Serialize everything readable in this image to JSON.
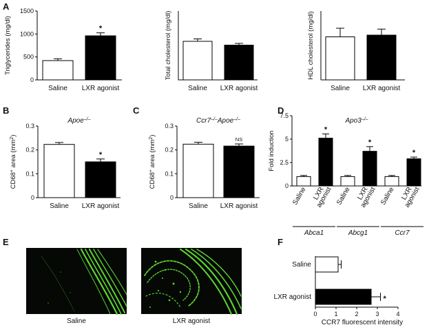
{
  "panel_labels": [
    "A",
    "B",
    "C",
    "D",
    "E",
    "F"
  ],
  "colors": {
    "saline_fill": "#ffffff",
    "lxr_fill": "#000000",
    "stroke": "#000000",
    "micro_background": "#050805",
    "micro_fluorescence": "#5cd62e"
  },
  "chart_data": [
    {
      "id": "A1",
      "panel": "A",
      "type": "bar",
      "categories": [
        "Saline",
        "LXR agonist"
      ],
      "values": [
        420,
        960
      ],
      "errors": [
        40,
        65
      ],
      "significance": [
        "",
        "*"
      ],
      "ylabel": "Triglycerides (mg/dl)",
      "yticks": [
        0,
        500,
        1000,
        1500
      ],
      "ylim": [
        0,
        1500
      ]
    },
    {
      "id": "A2",
      "panel": "A",
      "type": "bar",
      "categories": [
        "Saline",
        "LXR agonist"
      ],
      "values": [
        112,
        101
      ],
      "errors": [
        7,
        5
      ],
      "significance": [
        "",
        ""
      ],
      "ylabel": "Total cholesterol (mg/dl)",
      "yticks": [],
      "ylim": [
        0,
        200
      ]
    },
    {
      "id": "A3",
      "panel": "A",
      "type": "bar",
      "categories": [
        "Saline",
        "LXR agonist"
      ],
      "values": [
        25,
        26
      ],
      "errors": [
        5,
        3.5
      ],
      "significance": [
        "",
        ""
      ],
      "ylabel": "HDL cholesterol (mg/dl)",
      "yticks": [],
      "ylim": [
        0,
        40
      ]
    },
    {
      "id": "B",
      "panel": "B",
      "type": "bar",
      "title": "Apoe–/–",
      "categories": [
        "Saline",
        "LXR agonist"
      ],
      "values": [
        0.223,
        0.15
      ],
      "errors": [
        0.008,
        0.012
      ],
      "significance": [
        "",
        "*"
      ],
      "ylabel": "CD68+ area (mm2)",
      "yticks": [
        0,
        0.1,
        0.2,
        0.3
      ],
      "ylim": [
        0,
        0.3
      ]
    },
    {
      "id": "C",
      "panel": "C",
      "type": "bar",
      "title": "Ccr7–/–Apoe–/–",
      "categories": [
        "Saline",
        "LXR agonist"
      ],
      "values": [
        0.224,
        0.216
      ],
      "errors": [
        0.008,
        0.009
      ],
      "significance": [
        "",
        "NS"
      ],
      "ylabel": "CD68+ area (mm2)",
      "yticks": [
        0,
        0.1,
        0.2,
        0.3
      ],
      "ylim": [
        0,
        0.3
      ]
    },
    {
      "id": "D",
      "panel": "D",
      "type": "bar",
      "title": "Apo3–/–",
      "groups": [
        "Abca1",
        "Abcg1",
        "Ccr7"
      ],
      "bar_labels": [
        "Saline",
        "LXR agonist"
      ],
      "series": [
        {
          "name": "Saline",
          "values": [
            1.0,
            1.0,
            1.0
          ],
          "errors": [
            0.12,
            0.12,
            0.12
          ]
        },
        {
          "name": "LXR agonist",
          "values": [
            5.1,
            3.7,
            2.9
          ],
          "errors": [
            0.45,
            0.5,
            0.18
          ]
        }
      ],
      "significance": [
        "*",
        "*",
        "*"
      ],
      "ylabel": "Fold induction",
      "yticks": [
        0,
        2.5,
        5,
        7.5
      ],
      "ylim": [
        0,
        7.5
      ]
    },
    {
      "id": "F",
      "panel": "F",
      "type": "bar",
      "orientation": "horizontal",
      "categories": [
        "Saline",
        "LXR agonist"
      ],
      "values": [
        1.1,
        2.7
      ],
      "errors": [
        0.15,
        0.45
      ],
      "significance": [
        "",
        "*"
      ],
      "xlabel": "CCR7 fluorescent intensity",
      "xticks": [
        0,
        1,
        2,
        3,
        4
      ],
      "xlim": [
        0,
        4
      ]
    }
  ],
  "micrographs": {
    "panel": "E",
    "captions": [
      "Saline",
      "LXR agonist"
    ]
  }
}
